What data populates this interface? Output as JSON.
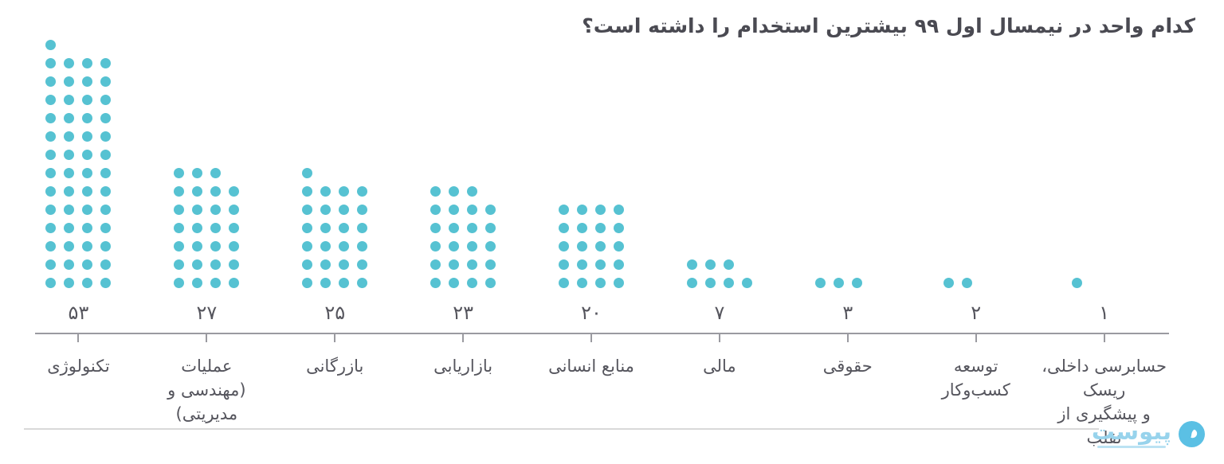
{
  "title": "کدام واحد در نیمسال اول ۹۹ بیشترین استخدام را داشته است؟",
  "colors": {
    "dot": "#56c2d2",
    "title_text": "#4a4a52",
    "label_text": "#55555d",
    "axis": "#9a9aa0",
    "divider": "#d9d9d9",
    "logo": "#5bc0e4",
    "logo_light": "#97d3ec"
  },
  "chart_data": {
    "type": "dot-matrix",
    "title": "کدام واحد در نیمسال اول ۹۹ بیشترین استخدام را داشته است؟",
    "xlabel": "",
    "ylabel": "",
    "direction": "rtl",
    "dots_per_row": 4,
    "remainder_alignment": "top-row-left",
    "columns_bottom_aligned": true,
    "sorted": "descending-left-to-right",
    "grid": false,
    "legend": false,
    "categories": [
      "تکنولوژی",
      "عملیات (مهندسی و مدیریتی)",
      "بازرگانی",
      "بازاریابی",
      "منابع انسانی",
      "مالی",
      "حقوقی",
      "توسعه کسب‌وکار",
      "حسابرسی داخلی، ریسک و پیشگیری از تقلب"
    ],
    "category_lines": [
      [
        "تکنولوژی"
      ],
      [
        "عملیات",
        "(مهندسی و مدیریتی)"
      ],
      [
        "بازرگانی"
      ],
      [
        "بازاریابی"
      ],
      [
        "منابع انسانی"
      ],
      [
        "مالی"
      ],
      [
        "حقوقی"
      ],
      [
        "توسعه",
        "کسب‌وکار"
      ],
      [
        "حسابرسی داخلی، ریسک",
        "و پیشگیری از تقلب"
      ]
    ],
    "values": [
      53,
      27,
      25,
      23,
      20,
      7,
      3,
      2,
      1
    ],
    "value_labels": [
      "۵۳",
      "۲۷",
      "۲۵",
      "۲۳",
      "۲۰",
      "۷",
      "۳",
      "۲",
      "۱"
    ]
  },
  "footer": {
    "logo_text": "پیوست"
  }
}
